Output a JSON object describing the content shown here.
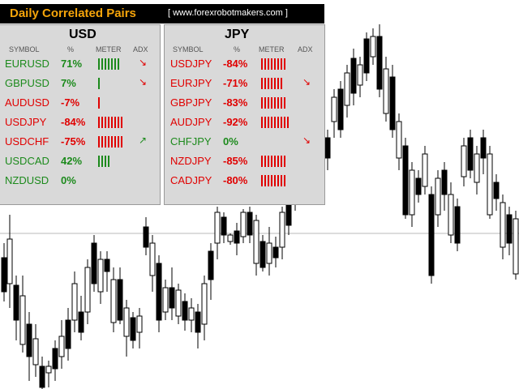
{
  "header": {
    "title": "Daily Correlated Pairs",
    "site": "[ www.forexrobotmakers.com ]"
  },
  "colors": {
    "green": "#1c8a1c",
    "red": "#e00000",
    "title": "#f5a40a"
  },
  "columns": {
    "symbol": "SYMBOL",
    "percent": "%",
    "meter": "METER",
    "adx": "ADX"
  },
  "panels": [
    {
      "currency": "USD",
      "rows": [
        {
          "symbol": "EURUSD",
          "pct": "71%",
          "meter": 7,
          "dir": "pos",
          "adx": "↘",
          "adx_dir": "neg"
        },
        {
          "symbol": "GBPUSD",
          "pct": "7%",
          "meter": 1,
          "dir": "pos",
          "adx": "↘",
          "adx_dir": "neg"
        },
        {
          "symbol": "AUDUSD",
          "pct": "-7%",
          "meter": 1,
          "dir": "neg",
          "adx": "",
          "adx_dir": "neg"
        },
        {
          "symbol": "USDJPY",
          "pct": "-84%",
          "meter": 8,
          "dir": "neg",
          "adx": "",
          "adx_dir": "neg"
        },
        {
          "symbol": "USDCHF",
          "pct": "-75%",
          "meter": 8,
          "dir": "neg",
          "adx": "↗",
          "adx_dir": "pos"
        },
        {
          "symbol": "USDCAD",
          "pct": "42%",
          "meter": 4,
          "dir": "pos",
          "adx": "",
          "adx_dir": "pos"
        },
        {
          "symbol": "NZDUSD",
          "pct": "0%",
          "meter": 0,
          "dir": "pos",
          "adx": "",
          "adx_dir": "pos"
        }
      ]
    },
    {
      "currency": "JPY",
      "rows": [
        {
          "symbol": "USDJPY",
          "pct": "-84%",
          "meter": 8,
          "dir": "neg",
          "adx": "",
          "adx_dir": "neg"
        },
        {
          "symbol": "EURJPY",
          "pct": "-71%",
          "meter": 7,
          "dir": "neg",
          "adx": "↘",
          "adx_dir": "neg"
        },
        {
          "symbol": "GBPJPY",
          "pct": "-83%",
          "meter": 8,
          "dir": "neg",
          "adx": "",
          "adx_dir": "neg"
        },
        {
          "symbol": "AUDJPY",
          "pct": "-92%",
          "meter": 9,
          "dir": "neg",
          "adx": "",
          "adx_dir": "neg"
        },
        {
          "symbol": "CHFJPY",
          "pct": "0%",
          "meter": 0,
          "dir": "pos",
          "adx": "↘",
          "adx_dir": "neg"
        },
        {
          "symbol": "NZDJPY",
          "pct": "-85%",
          "meter": 8,
          "dir": "neg",
          "adx": "",
          "adx_dir": "neg"
        },
        {
          "symbol": "CADJPY",
          "pct": "-80%",
          "meter": 8,
          "dir": "neg",
          "adx": "",
          "adx_dir": "neg"
        }
      ]
    }
  ]
}
